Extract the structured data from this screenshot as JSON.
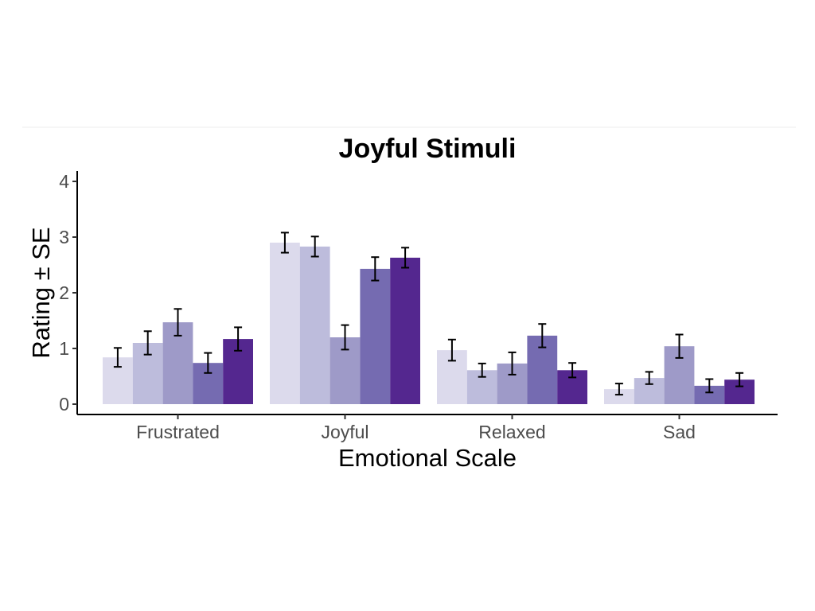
{
  "chart_data": {
    "type": "bar",
    "title": "Joyful Stimuli",
    "xlabel": "Emotional Scale",
    "ylabel": "Rating ± SE",
    "categories": [
      "Frustrated",
      "Joyful",
      "Relaxed",
      "Sad"
    ],
    "ylim": [
      0,
      4
    ],
    "yticks": [
      0,
      1,
      2,
      3,
      4
    ],
    "grid": false,
    "legend": "none",
    "series_colors": [
      "#dcdaec",
      "#bdbcdc",
      "#9e9ac8",
      "#756bb1",
      "#54278f"
    ],
    "series": [
      {
        "values": [
          0.84,
          2.9,
          0.97,
          0.27
        ],
        "se": [
          0.17,
          0.18,
          0.19,
          0.1
        ]
      },
      {
        "values": [
          1.1,
          2.83,
          0.61,
          0.47
        ],
        "se": [
          0.21,
          0.18,
          0.12,
          0.11
        ]
      },
      {
        "values": [
          1.47,
          1.2,
          0.73,
          1.04
        ],
        "se": [
          0.24,
          0.22,
          0.2,
          0.21
        ]
      },
      {
        "values": [
          0.74,
          2.43,
          1.23,
          0.33
        ],
        "se": [
          0.18,
          0.21,
          0.21,
          0.12
        ]
      },
      {
        "values": [
          1.17,
          2.63,
          0.61,
          0.44
        ],
        "se": [
          0.21,
          0.18,
          0.13,
          0.12
        ]
      }
    ]
  }
}
